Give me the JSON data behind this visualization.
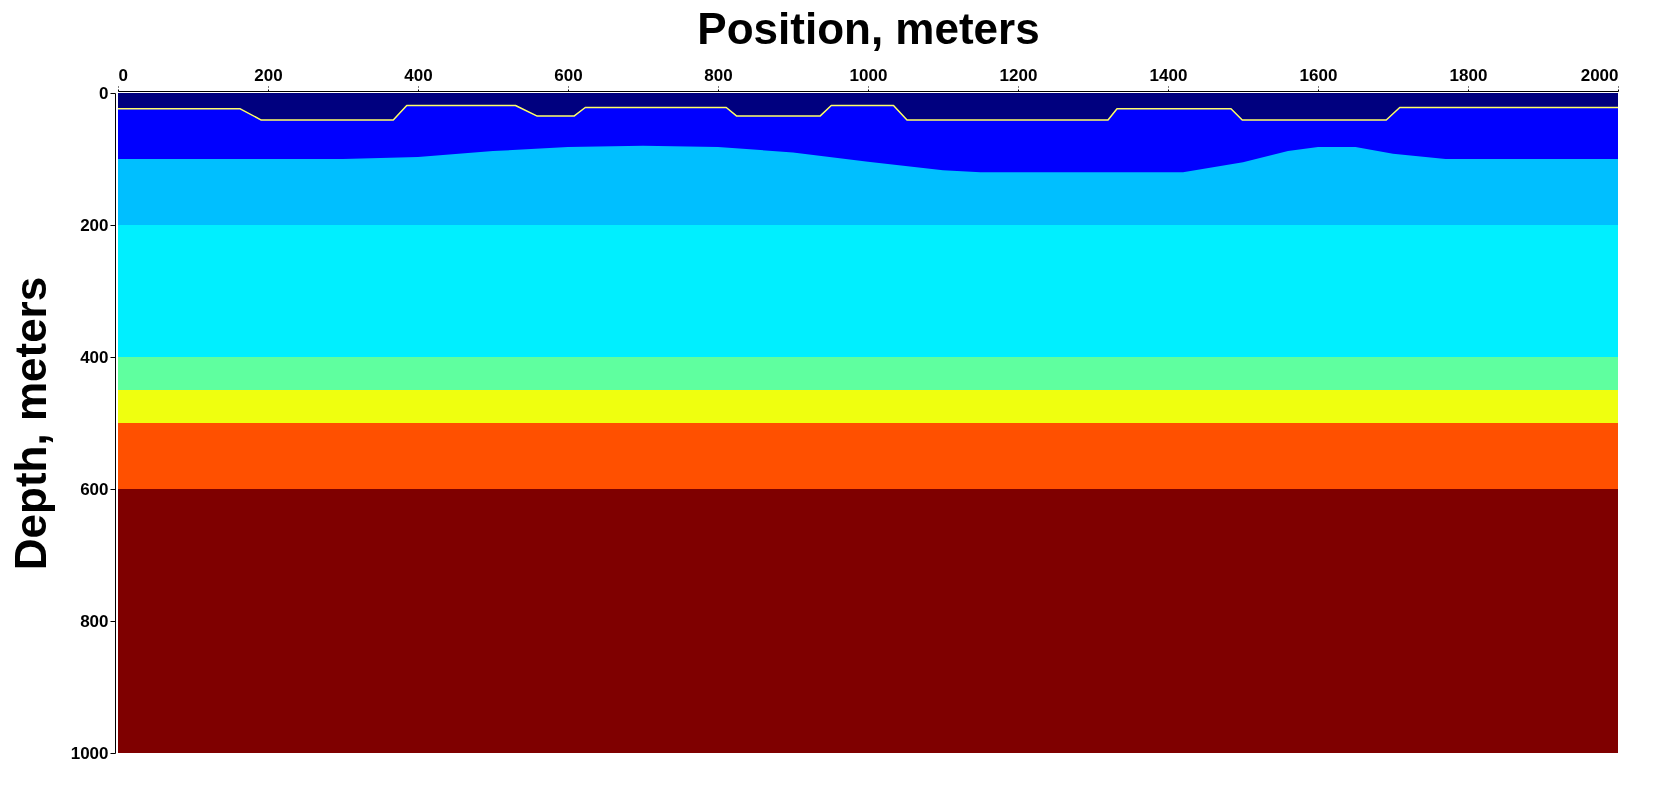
{
  "chart_data": {
    "type": "area",
    "xlabel": "Position, meters",
    "ylabel": "Depth, meters",
    "xlim": [
      0,
      2000
    ],
    "ylim": [
      1000,
      0
    ],
    "xticks": [
      0,
      200,
      400,
      600,
      800,
      1000,
      1200,
      1400,
      1600,
      1800,
      2000
    ],
    "yticks": [
      0,
      200,
      400,
      600,
      800,
      1000
    ],
    "series": [
      {
        "color": "#00007f",
        "x": [
          0,
          163,
          191,
          367,
          385,
          530,
          559,
          608,
          623,
          811,
          825,
          936,
          951,
          1034,
          1052,
          1320,
          1332,
          1484,
          1499,
          1691,
          1709,
          2000
        ],
        "values": [
          24,
          24,
          41,
          41,
          19,
          19,
          35,
          35,
          22,
          22,
          35,
          35,
          19,
          19,
          41,
          41,
          24,
          24,
          41,
          41,
          22,
          22
        ]
      },
      {
        "color": "#0000ff",
        "x": [
          0,
          300,
          400,
          500,
          600,
          700,
          800,
          900,
          1000,
          1100,
          1150,
          1200,
          1300,
          1420,
          1500,
          1560,
          1600,
          1650,
          1700,
          1770,
          2000
        ],
        "values": [
          100,
          100,
          97,
          88,
          82,
          80,
          82,
          90,
          104,
          117,
          120,
          120,
          120,
          120,
          105,
          88,
          82,
          82,
          92,
          100,
          100
        ]
      },
      {
        "color": "#00bfff",
        "x": [
          0,
          2000
        ],
        "values": [
          200,
          200
        ]
      },
      {
        "color": "#00efff",
        "x": [
          0,
          2000
        ],
        "values": [
          400,
          400
        ]
      },
      {
        "color": "#5fff9f",
        "x": [
          0,
          2000
        ],
        "values": [
          450,
          450
        ]
      },
      {
        "color": "#efff0f",
        "x": [
          0,
          2000
        ],
        "values": [
          500,
          500
        ]
      },
      {
        "color": "#ff5000",
        "x": [
          0,
          2000
        ],
        "values": [
          600,
          600
        ]
      },
      {
        "color": "#7f0000",
        "x": [
          0,
          2000
        ],
        "values": [
          1000,
          1000
        ]
      },
      {
        "type": "line",
        "color": "#ffff66",
        "x": [
          0,
          163,
          191,
          367,
          385,
          530,
          559,
          608,
          623,
          811,
          825,
          936,
          951,
          1034,
          1052,
          1320,
          1332,
          1484,
          1499,
          1691,
          1709,
          2000
        ],
        "values": [
          24,
          24,
          41,
          41,
          19,
          19,
          35,
          35,
          22,
          22,
          35,
          35,
          19,
          19,
          41,
          41,
          24,
          24,
          41,
          41,
          22,
          22
        ]
      }
    ]
  }
}
